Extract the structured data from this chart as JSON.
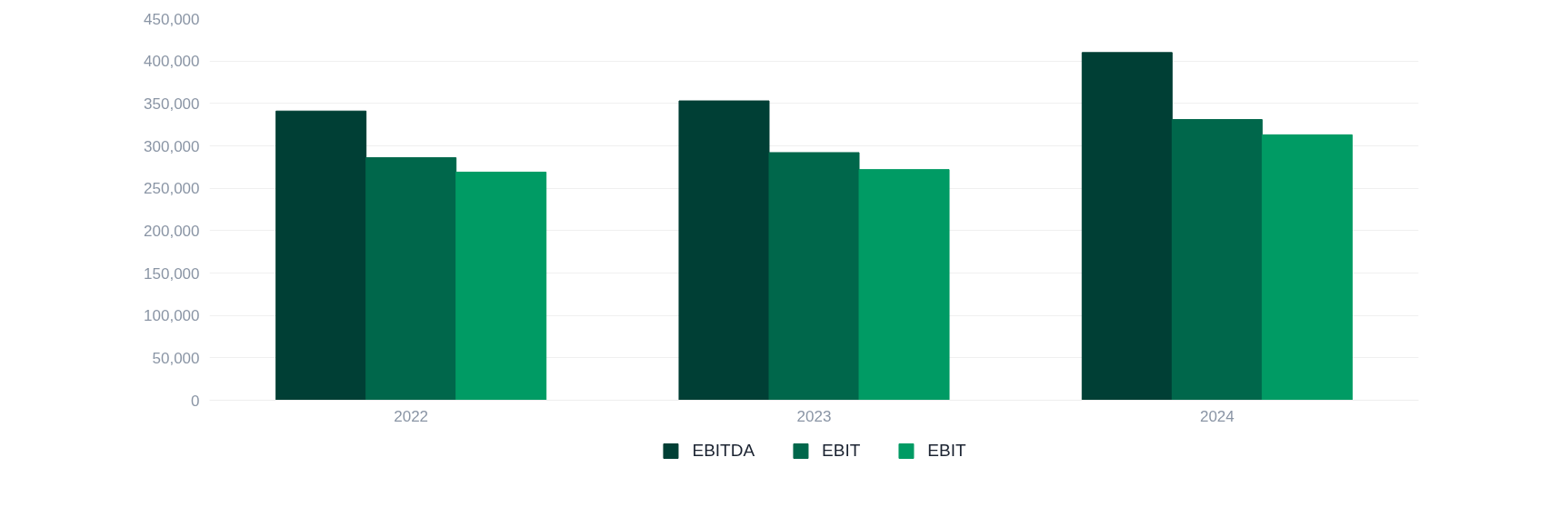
{
  "chart_data": {
    "type": "bar",
    "categories": [
      "2022",
      "2023",
      "2024"
    ],
    "series": [
      {
        "name": "EBITDA",
        "color": "#003f35",
        "values": [
          341000,
          353000,
          410000
        ]
      },
      {
        "name": "EBIT",
        "color": "#00674b",
        "values": [
          286000,
          292000,
          331000
        ]
      },
      {
        "name": "EBIT",
        "color": "#009b64",
        "values": [
          269000,
          272000,
          313000
        ]
      }
    ],
    "ylim": [
      0,
      450000
    ],
    "yticks": [
      {
        "value": 0,
        "label": "0"
      },
      {
        "value": 50000,
        "label": "50,000"
      },
      {
        "value": 100000,
        "label": "100,000"
      },
      {
        "value": 150000,
        "label": "150,000"
      },
      {
        "value": 200000,
        "label": "200,000"
      },
      {
        "value": 250000,
        "label": "250,000"
      },
      {
        "value": 300000,
        "label": "300,000"
      },
      {
        "value": 350000,
        "label": "350,000"
      },
      {
        "value": 400000,
        "label": "400,000"
      },
      {
        "value": 450000,
        "label": "450,000"
      }
    ],
    "grid": "y",
    "legend": "bottom"
  }
}
